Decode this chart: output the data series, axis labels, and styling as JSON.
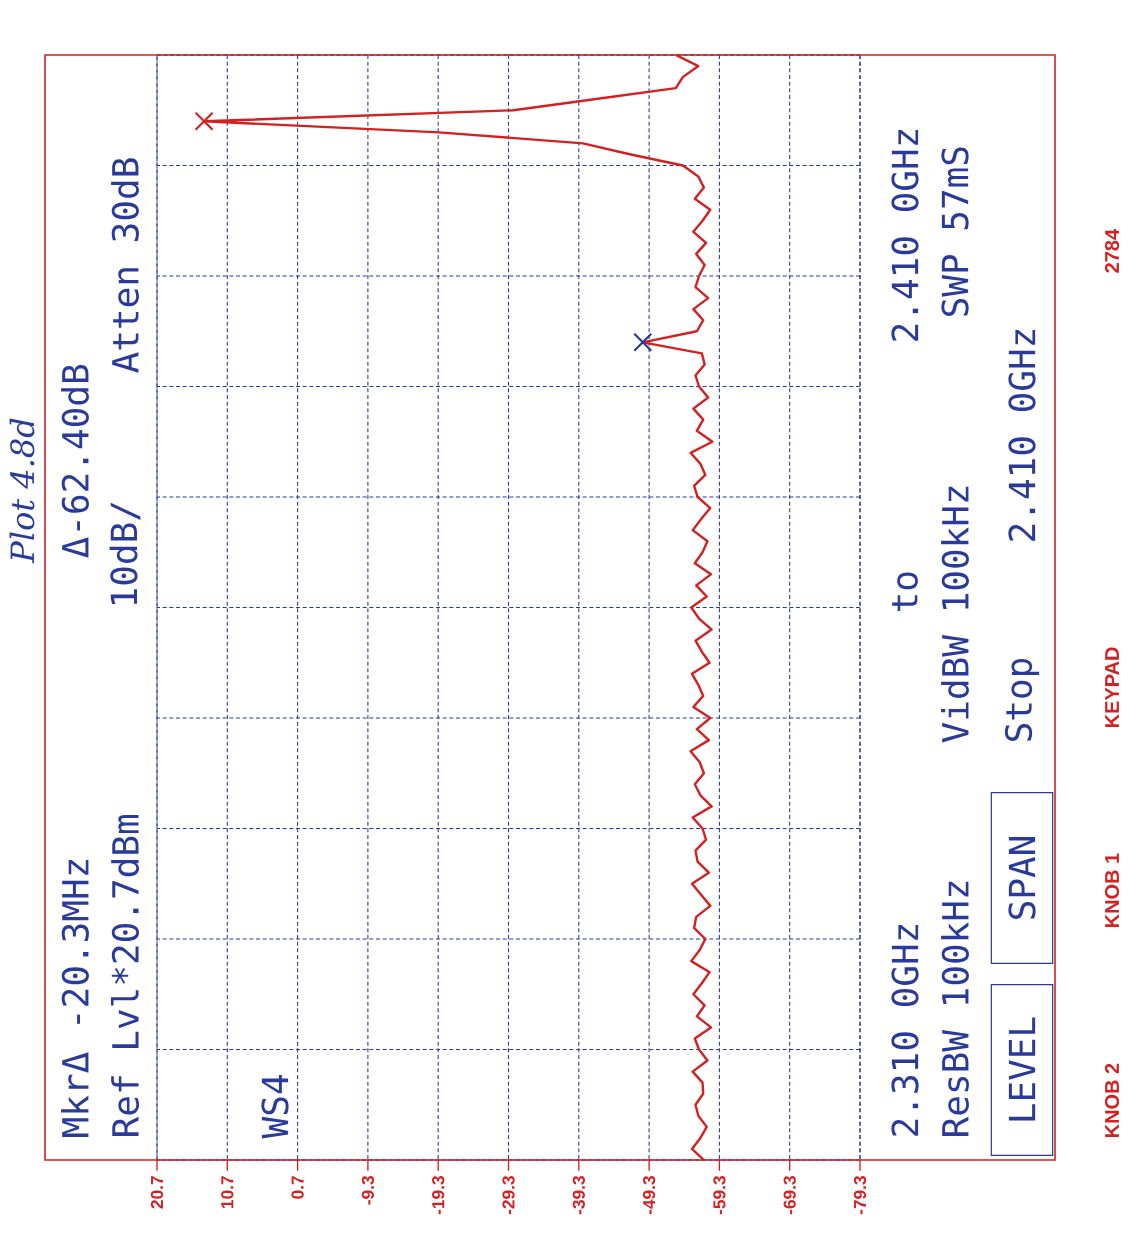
{
  "chart_data": {
    "type": "line",
    "title": "Plot 4.8d",
    "orientation": "horizontal",
    "categories": [
      null,
      null,
      null,
      null,
      null,
      null,
      null,
      null,
      null,
      null,
      null,
      null,
      null,
      null,
      null,
      null,
      null,
      null,
      null,
      null,
      null,
      null,
      null,
      null,
      null,
      null,
      null,
      null,
      null,
      null,
      null,
      null,
      null,
      null,
      null,
      null,
      null,
      null,
      null,
      null,
      null,
      null,
      null,
      null,
      null,
      null,
      null,
      null,
      null,
      null,
      null,
      null,
      null,
      null,
      null,
      null,
      null,
      null,
      null,
      null,
      null,
      null,
      null,
      null,
      null,
      null,
      null,
      null,
      null,
      null,
      null,
      null,
      null,
      null,
      null,
      null,
      null,
      null,
      null,
      null,
      null,
      null,
      null,
      null,
      null,
      null,
      null,
      null,
      null,
      null,
      null,
      null,
      null,
      null,
      null,
      null,
      null,
      null,
      null,
      null,
      null
    ],
    "xlim": [
      20.7,
      -79.3
    ],
    "xticks": [
      20.7,
      10.7,
      0.7,
      -9.3,
      -19.3,
      -29.3,
      -39.3,
      -49.3,
      -59.3,
      -69.3,
      -79.3
    ],
    "tick_labels": "x",
    "grid": true,
    "line_style": "solid",
    "marker": "none",
    "series": [
      {
        "color": "#d42020",
        "values": [
          -53.1,
          -56.3,
          -54.1,
          -53.1,
          -41.5,
          -30.0,
          14.0,
          -19.4,
          -39.9,
          -46.7,
          -54.1,
          -56.3,
          -57.1,
          -55.8,
          -58.0,
          -56.9,
          -55.6,
          -57.4,
          -56.0,
          -57.2,
          -56.4,
          -55.9,
          -57.7,
          -55.6,
          -57.0,
          -56.1,
          -48.4,
          -56.8,
          -57.2,
          -55.9,
          -56.4,
          -57.7,
          -55.6,
          -57.0,
          -56.1,
          -58.3,
          -55.2,
          -56.6,
          -57.3,
          -55.7,
          -56.2,
          -58.0,
          -56.7,
          -55.5,
          -57.6,
          -56.9,
          -55.8,
          -58.1,
          -56.0,
          -57.5,
          -55.3,
          -56.4,
          -58.2,
          -55.9,
          -56.8,
          -57.9,
          -55.4,
          -56.3,
          -57.0,
          -55.6,
          -58.0,
          -56.1,
          -57.8,
          -55.2,
          -56.5,
          -57.1,
          -55.8,
          -56.6,
          -58.2,
          -55.5,
          -56.9,
          -57.4,
          -55.9,
          -56.2,
          -57.8,
          -55.4,
          -56.7,
          -58.0,
          -56.0,
          -55.7,
          -57.3,
          -56.5,
          -55.3,
          -57.9,
          -56.8,
          -55.6,
          -57.2,
          -56.1,
          -58.1,
          -55.8,
          -56.4,
          -57.6,
          -55.5,
          -56.9,
          -57.0,
          -55.9,
          -56.3,
          -57.5,
          -56.6,
          -55.4,
          -57.1
        ]
      },
      {
        "type": "scatter",
        "marker": "cross",
        "values": [
          null,
          null,
          null,
          null,
          null,
          null,
          14.0,
          null,
          null,
          null,
          null,
          null,
          null,
          null,
          null,
          null,
          null,
          null,
          null,
          null,
          null,
          null,
          null,
          null,
          null,
          null,
          -48.4,
          null,
          null,
          null,
          null,
          null,
          null,
          null,
          null,
          null,
          null,
          null,
          null,
          null,
          null,
          null,
          null,
          null,
          null,
          null,
          null,
          null,
          null,
          null,
          null,
          null,
          null,
          null,
          null,
          null,
          null,
          null,
          null,
          null,
          null,
          null,
          null,
          null,
          null,
          null,
          null,
          null,
          null,
          null,
          null,
          null,
          null,
          null,
          null,
          null,
          null,
          null,
          null,
          null,
          null,
          null,
          null,
          null,
          null,
          null,
          null,
          null,
          null,
          null,
          null,
          null,
          null,
          null,
          null,
          null,
          null,
          null,
          null,
          null,
          null
        ],
        "colors": [
          null,
          null,
          null,
          null,
          null,
          null,
          "#d42020",
          null,
          null,
          null,
          null,
          null,
          null,
          null,
          null,
          null,
          null,
          null,
          null,
          null,
          null,
          null,
          null,
          null,
          null,
          null,
          "#2a3a9a",
          null,
          null,
          null,
          null,
          null,
          null,
          null,
          null,
          null,
          null,
          null,
          null,
          null,
          null,
          null,
          null,
          null,
          null,
          null,
          null,
          null,
          null,
          null,
          null,
          null,
          null,
          null,
          null,
          null,
          null,
          null,
          null,
          null,
          null,
          null,
          null,
          null,
          null,
          null,
          null,
          null,
          null,
          null,
          null,
          null,
          null,
          null,
          null,
          null,
          null,
          null,
          null,
          null,
          null,
          null,
          null,
          null,
          null,
          null,
          null,
          null,
          null,
          null,
          null,
          null,
          null,
          null,
          null,
          null,
          null,
          null,
          null,
          null,
          null
        ]
      }
    ],
    "annotations": [
      "MkrΔ -20.3MHz",
      "Δ-62.40dB",
      "Ref Lvl*20.7dBm",
      "10dB/",
      "Atten 30dB",
      "WS4",
      "2.310 0GHz",
      "to",
      "2.410 0GHz",
      "ResBW 100kHz",
      "VidBW 100kHz",
      "SWP 57mS",
      "LEVEL",
      "SPAN",
      "Stop",
      "2.410 0GHz",
      "KNOB 2",
      "KNOB 1",
      "KEYPAD",
      "2784"
    ]
  }
}
